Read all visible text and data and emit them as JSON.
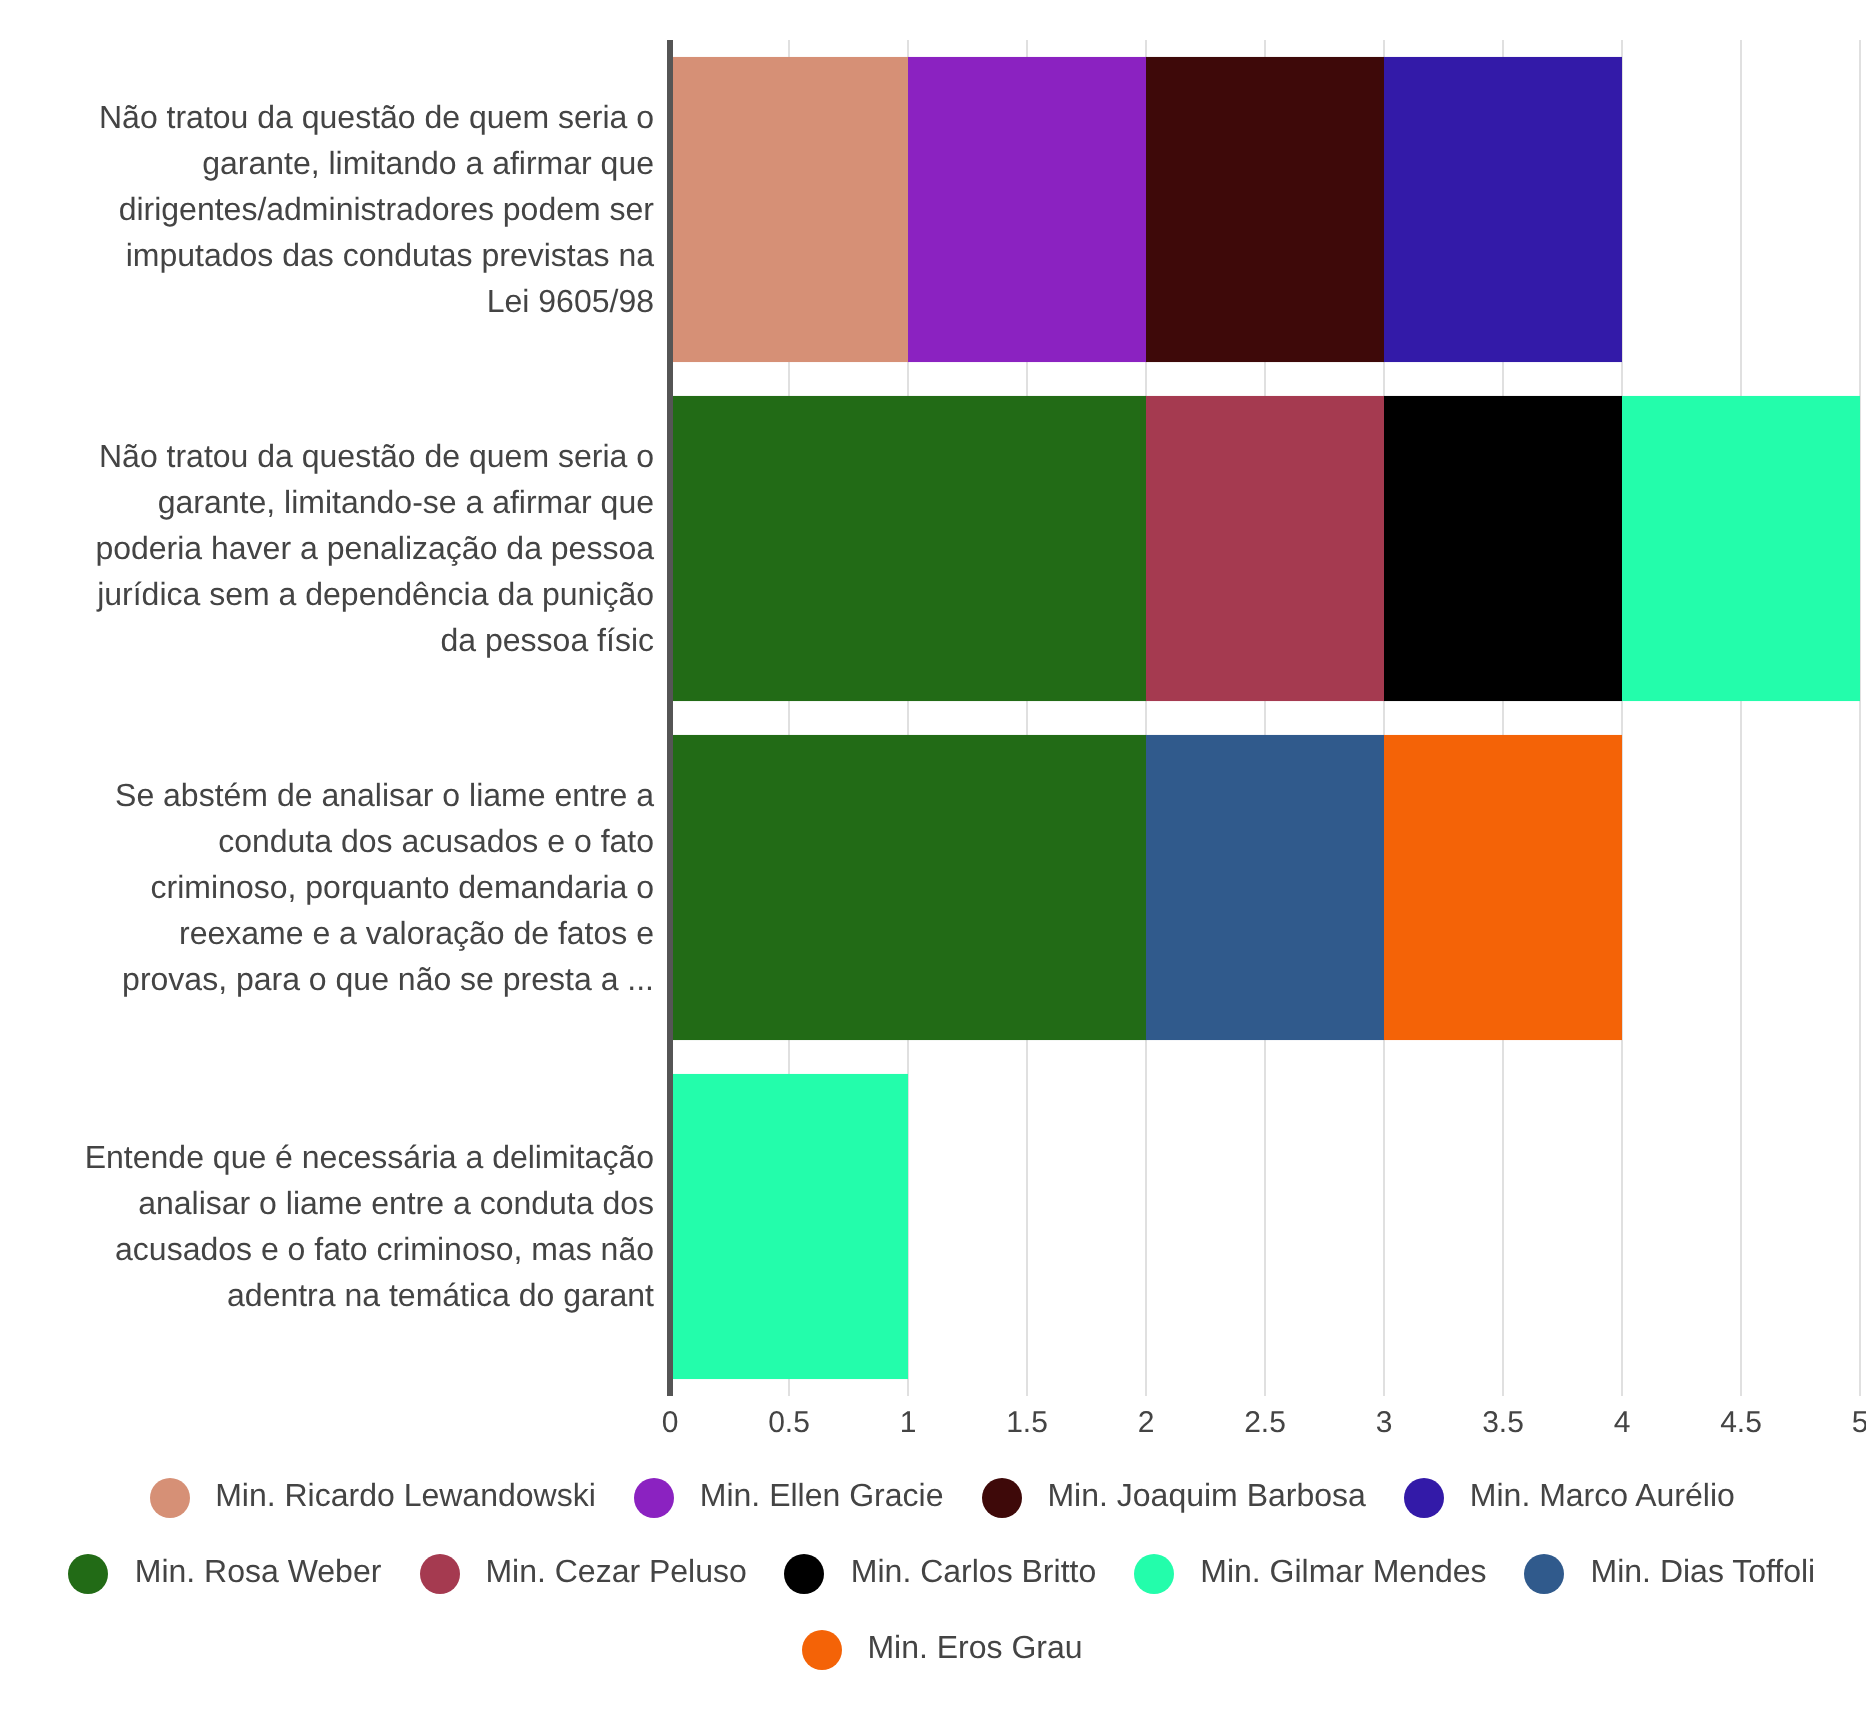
{
  "chart_data": {
    "type": "bar",
    "orientation": "horizontal",
    "stacked": true,
    "grid": "x",
    "legend": "bottom",
    "xlim": [
      0,
      5
    ],
    "xticks": [
      0,
      0.5,
      1,
      1.5,
      2,
      2.5,
      3,
      3.5,
      4,
      4.5,
      5
    ],
    "categories": [
      "Não tratou da questão de quem seria o garante, limitando a afirmar que dirigentes/administradores podem ser imputados das condutas previstas na Lei 9605/98",
      "Não tratou da questão de quem seria o garante, limitando-se a afirmar que poderia haver a penalização da pessoa jurídica sem a dependência da punição da pessoa físic",
      "Se abstém de analisar o liame entre a conduta dos acusados e o fato criminoso, porquanto demandaria o reexame e a valoração de fatos e provas, para o que não se presta a ...",
      "Entende que é necessária a delimitação analisar o liame entre a conduta dos acusados e o fato criminoso, mas não adentra na temática do garant"
    ],
    "series": [
      {
        "name": "Min. Ricardo Lewandowski",
        "color": "#d69076",
        "values": [
          1,
          null,
          null,
          null
        ]
      },
      {
        "name": "Min. Ellen Gracie",
        "color": "#8b22c1",
        "values": [
          1,
          null,
          null,
          null
        ]
      },
      {
        "name": "Min. Joaquim Barbosa",
        "color": "#3e0909",
        "values": [
          1,
          null,
          null,
          null
        ]
      },
      {
        "name": "Min. Marco Aurélio",
        "color": "#331aa8",
        "values": [
          1,
          null,
          null,
          null
        ]
      },
      {
        "name": "Min. Rosa Weber",
        "color": "#226b16",
        "values": [
          null,
          2,
          2,
          null
        ]
      },
      {
        "name": "Min. Cezar Peluso",
        "color": "#a53a50",
        "values": [
          null,
          1,
          null,
          null
        ]
      },
      {
        "name": "Min. Carlos Britto",
        "color": "#000000",
        "values": [
          null,
          1,
          null,
          null
        ]
      },
      {
        "name": "Min. Gilmar Mendes",
        "color": "#23fdab",
        "values": [
          null,
          1,
          null,
          1
        ]
      },
      {
        "name": "Min. Dias Toffoli",
        "color": "#305a8c",
        "values": [
          null,
          null,
          1,
          null
        ]
      },
      {
        "name": "Min. Eros Grau",
        "color": "#f46307",
        "values": [
          null,
          null,
          1,
          null
        ]
      }
    ]
  }
}
